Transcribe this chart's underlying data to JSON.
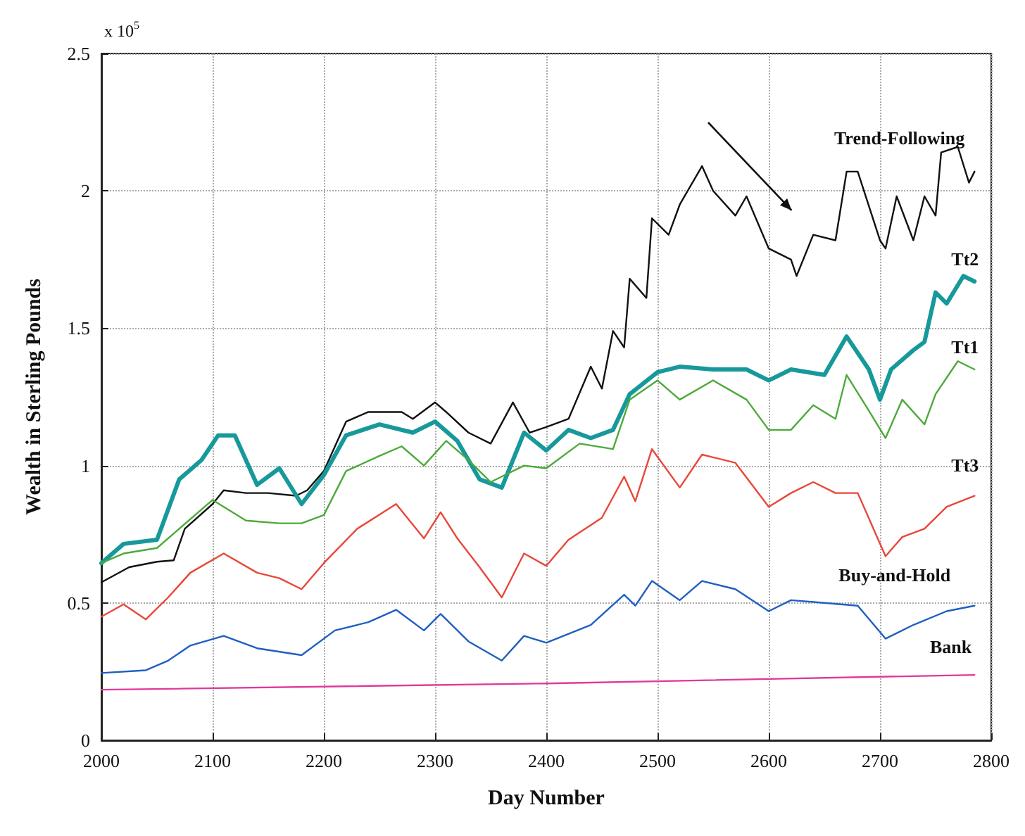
{
  "chart_data": {
    "type": "line",
    "xlabel": "Day Number",
    "ylabel": "Wealth in Sterling Pounds",
    "xlim": [
      2000,
      2800
    ],
    "xticks": [
      2000,
      2100,
      2200,
      2300,
      2400,
      2500,
      2600,
      2700,
      2800
    ],
    "ylim": [
      0,
      2.5
    ],
    "yticks": [
      0,
      0.5,
      1,
      1.5,
      2,
      2.5
    ],
    "grid": true,
    "marker": "none",
    "line_style": "solid",
    "annotations": [
      "x 10$^{5}$"
    ],
    "series": [
      {
        "name": "Trend-Following",
        "color": "#111111",
        "x": [
          2000,
          2025,
          2050,
          2065,
          2075,
          2100,
          2110,
          2130,
          2150,
          2175,
          2185,
          2200,
          2220,
          2240,
          2270,
          2280,
          2300,
          2310,
          2330,
          2350,
          2370,
          2385,
          2400,
          2420,
          2440,
          2450,
          2460,
          2470,
          2475,
          2490,
          2495,
          2510,
          2520,
          2540,
          2550,
          2570,
          2580,
          2600,
          2620,
          2625,
          2640,
          2660,
          2670,
          2680,
          2700,
          2705,
          2715,
          2730,
          2740,
          2750,
          2755,
          2770,
          2780,
          2785
        ],
        "values": [
          0.575,
          0.63,
          0.65,
          0.655,
          0.77,
          0.86,
          0.91,
          0.9,
          0.9,
          0.89,
          0.91,
          0.98,
          1.16,
          1.195,
          1.195,
          1.17,
          1.23,
          1.195,
          1.12,
          1.08,
          1.23,
          1.12,
          1.14,
          1.17,
          1.36,
          1.28,
          1.49,
          1.43,
          1.68,
          1.61,
          1.9,
          1.84,
          1.95,
          2.09,
          2.0,
          1.91,
          1.98,
          1.79,
          1.75,
          1.69,
          1.84,
          1.82,
          2.07,
          2.07,
          1.82,
          1.79,
          1.98,
          1.82,
          1.98,
          1.91,
          2.14,
          2.16,
          2.03,
          2.07
        ]
      },
      {
        "name": "Tt2",
        "color": "#17999b",
        "x": [
          2000,
          2020,
          2050,
          2070,
          2090,
          2105,
          2120,
          2140,
          2160,
          2180,
          2200,
          2220,
          2250,
          2280,
          2300,
          2320,
          2340,
          2360,
          2380,
          2400,
          2420,
          2440,
          2460,
          2475,
          2500,
          2520,
          2550,
          2580,
          2600,
          2620,
          2650,
          2670,
          2690,
          2700,
          2710,
          2730,
          2740,
          2750,
          2760,
          2775,
          2785
        ],
        "values": [
          0.645,
          0.715,
          0.73,
          0.95,
          1.02,
          1.11,
          1.11,
          0.93,
          0.99,
          0.86,
          0.965,
          1.11,
          1.15,
          1.12,
          1.16,
          1.09,
          0.95,
          0.92,
          1.12,
          1.055,
          1.13,
          1.1,
          1.13,
          1.26,
          1.34,
          1.36,
          1.35,
          1.35,
          1.31,
          1.35,
          1.33,
          1.47,
          1.35,
          1.24,
          1.35,
          1.42,
          1.45,
          1.63,
          1.59,
          1.69,
          1.67
        ]
      },
      {
        "name": "Tt1",
        "color": "#4caa3a",
        "x": [
          2000,
          2020,
          2050,
          2070,
          2100,
          2130,
          2160,
          2180,
          2200,
          2220,
          2250,
          2270,
          2290,
          2310,
          2330,
          2350,
          2380,
          2400,
          2430,
          2460,
          2475,
          2500,
          2520,
          2550,
          2580,
          2600,
          2620,
          2640,
          2660,
          2670,
          2690,
          2705,
          2720,
          2740,
          2750,
          2770,
          2785
        ],
        "values": [
          0.645,
          0.68,
          0.7,
          0.77,
          0.875,
          0.8,
          0.79,
          0.79,
          0.82,
          0.98,
          1.035,
          1.07,
          1.0,
          1.09,
          1.02,
          0.94,
          1.0,
          0.99,
          1.08,
          1.06,
          1.24,
          1.31,
          1.24,
          1.31,
          1.24,
          1.13,
          1.13,
          1.22,
          1.17,
          1.33,
          1.2,
          1.1,
          1.24,
          1.15,
          1.26,
          1.38,
          1.35
        ]
      },
      {
        "name": "Tt3",
        "color": "#e8473a",
        "x": [
          2000,
          2020,
          2040,
          2060,
          2080,
          2110,
          2140,
          2160,
          2180,
          2200,
          2230,
          2265,
          2290,
          2305,
          2320,
          2340,
          2360,
          2380,
          2400,
          2420,
          2450,
          2470,
          2480,
          2495,
          2520,
          2540,
          2570,
          2600,
          2620,
          2640,
          2660,
          2680,
          2705,
          2720,
          2740,
          2760,
          2785
        ],
        "values": [
          0.45,
          0.495,
          0.44,
          0.52,
          0.61,
          0.68,
          0.61,
          0.59,
          0.55,
          0.645,
          0.77,
          0.86,
          0.735,
          0.83,
          0.735,
          0.63,
          0.52,
          0.68,
          0.635,
          0.73,
          0.81,
          0.96,
          0.87,
          1.06,
          0.92,
          1.04,
          1.01,
          0.85,
          0.9,
          0.94,
          0.9,
          0.9,
          0.67,
          0.74,
          0.77,
          0.85,
          0.89
        ]
      },
      {
        "name": "Buy-and-Hold",
        "color": "#1f5fc0",
        "x": [
          2000,
          2040,
          2060,
          2080,
          2110,
          2140,
          2180,
          2210,
          2240,
          2265,
          2290,
          2305,
          2330,
          2360,
          2380,
          2400,
          2440,
          2470,
          2480,
          2495,
          2520,
          2540,
          2570,
          2600,
          2620,
          2650,
          2680,
          2705,
          2730,
          2760,
          2785
        ],
        "values": [
          0.245,
          0.255,
          0.29,
          0.345,
          0.38,
          0.335,
          0.31,
          0.4,
          0.43,
          0.475,
          0.4,
          0.46,
          0.36,
          0.29,
          0.38,
          0.355,
          0.42,
          0.53,
          0.49,
          0.58,
          0.51,
          0.58,
          0.55,
          0.47,
          0.51,
          0.5,
          0.49,
          0.37,
          0.42,
          0.47,
          0.49
        ]
      },
      {
        "name": "Bank",
        "color": "#e0399a",
        "x": [
          2000,
          2400,
          2785
        ],
        "values": [
          0.184,
          0.207,
          0.238
        ]
      }
    ]
  }
}
